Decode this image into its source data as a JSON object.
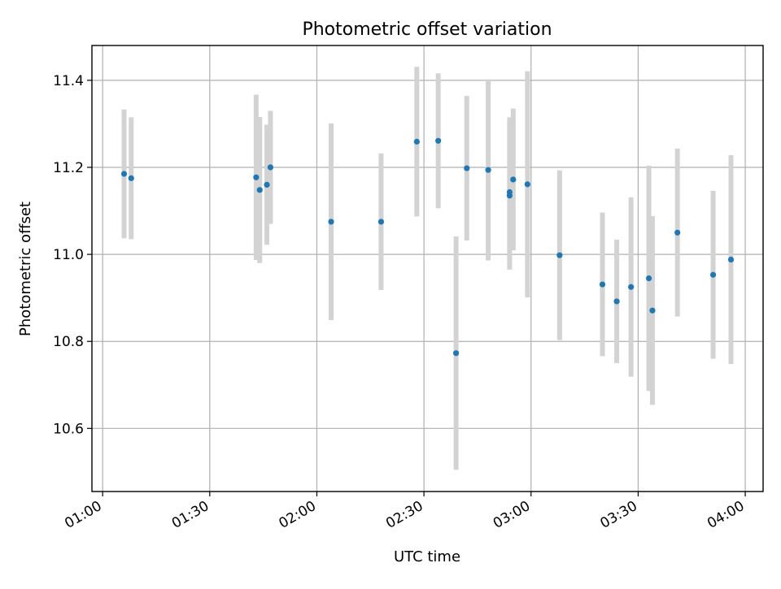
{
  "chart_data": {
    "type": "scatter",
    "title": "Photometric offset variation",
    "xlabel": "UTC time",
    "ylabel": "Photometric offset",
    "xlim": [
      "00:57",
      "04:05"
    ],
    "ylim": [
      10.455,
      11.48
    ],
    "x_ticks": [
      "01:00",
      "01:30",
      "02:00",
      "02:30",
      "03:00",
      "03:30",
      "04:00"
    ],
    "y_ticks": [
      "10.6",
      "10.8",
      "11.0",
      "11.2",
      "11.4"
    ],
    "grid": true,
    "point_color": "#1f77b4",
    "errorbar_color": "#d3d3d3",
    "series": [
      {
        "points": [
          {
            "x": "01:06",
            "y": 11.185,
            "err": 0.148
          },
          {
            "x": "01:08",
            "y": 11.175,
            "err": 0.14
          },
          {
            "x": "01:43",
            "y": 11.177,
            "err": 0.19
          },
          {
            "x": "01:44",
            "y": 11.148,
            "err": 0.168
          },
          {
            "x": "01:46",
            "y": 11.16,
            "err": 0.138
          },
          {
            "x": "01:47",
            "y": 11.2,
            "err": 0.13
          },
          {
            "x": "02:04",
            "y": 11.075,
            "err": 0.226
          },
          {
            "x": "02:18",
            "y": 11.075,
            "err": 0.157
          },
          {
            "x": "02:28",
            "y": 11.259,
            "err": 0.172
          },
          {
            "x": "02:34",
            "y": 11.261,
            "err": 0.155
          },
          {
            "x": "02:39",
            "y": 10.773,
            "err": 0.268
          },
          {
            "x": "02:42",
            "y": 11.198,
            "err": 0.166
          },
          {
            "x": "02:48",
            "y": 11.194,
            "err": 0.208
          },
          {
            "x": "02:54",
            "y": 11.135,
            "err": 0.17
          },
          {
            "x": "02:54",
            "y": 11.143,
            "err": 0.172
          },
          {
            "x": "02:55",
            "y": 11.172,
            "err": 0.163
          },
          {
            "x": "02:59",
            "y": 11.161,
            "err": 0.26
          },
          {
            "x": "03:08",
            "y": 10.998,
            "err": 0.195
          },
          {
            "x": "03:20",
            "y": 10.931,
            "err": 0.165
          },
          {
            "x": "03:24",
            "y": 10.892,
            "err": 0.142
          },
          {
            "x": "03:28",
            "y": 10.925,
            "err": 0.206
          },
          {
            "x": "03:33",
            "y": 10.945,
            "err": 0.259
          },
          {
            "x": "03:34",
            "y": 10.871,
            "err": 0.217
          },
          {
            "x": "03:41",
            "y": 11.05,
            "err": 0.193
          },
          {
            "x": "03:51",
            "y": 10.953,
            "err": 0.193
          },
          {
            "x": "03:56",
            "y": 10.988,
            "err": 0.24
          }
        ]
      }
    ]
  }
}
